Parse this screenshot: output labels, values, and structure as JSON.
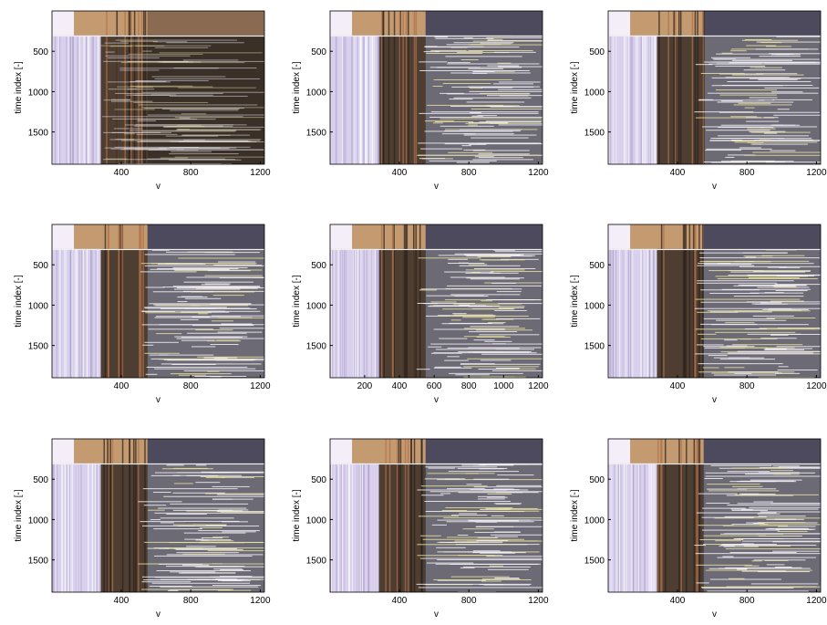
{
  "chart_data": [
    {
      "type": "image",
      "xlabel": "v",
      "ylabel": "time index [-]",
      "xlim": [
        1,
        1224
      ],
      "ylim": [
        0,
        1900
      ],
      "yreverse": true,
      "xticks": [
        400,
        800,
        1200
      ],
      "yticks": [
        500,
        1000,
        1500
      ]
    },
    {
      "type": "image",
      "xlabel": "v",
      "ylabel": "time index [-]",
      "xlim": [
        1,
        1224
      ],
      "ylim": [
        0,
        1900
      ],
      "yreverse": true,
      "xticks": [
        400,
        800,
        1200
      ],
      "yticks": [
        500,
        1000,
        1500
      ]
    },
    {
      "type": "image",
      "xlabel": "v",
      "ylabel": "time index [-]",
      "xlim": [
        1,
        1224
      ],
      "ylim": [
        0,
        1900
      ],
      "yreverse": true,
      "xticks": [
        400,
        800,
        1200
      ],
      "yticks": [
        500,
        1000,
        1500
      ]
    },
    {
      "type": "image",
      "xlabel": "v",
      "ylabel": "time index [-]",
      "xlim": [
        1,
        1224
      ],
      "ylim": [
        0,
        1900
      ],
      "yreverse": true,
      "xticks": [
        400,
        800,
        1200
      ],
      "yticks": [
        500,
        1000,
        1500
      ]
    },
    {
      "type": "image",
      "xlabel": "v",
      "ylabel": "time index [-]",
      "xlim": [
        1,
        1224
      ],
      "ylim": [
        0,
        1900
      ],
      "yreverse": true,
      "xticks": [
        200,
        400,
        600,
        800,
        1000,
        1200
      ],
      "yticks": [
        500,
        1000,
        1500
      ]
    },
    {
      "type": "image",
      "xlabel": "v",
      "ylabel": "time index [-]",
      "xlim": [
        1,
        1224
      ],
      "ylim": [
        0,
        1900
      ],
      "yreverse": true,
      "xticks": [
        400,
        800,
        1200
      ],
      "yticks": [
        500,
        1000,
        1500
      ]
    },
    {
      "type": "image",
      "xlabel": "v",
      "ylabel": "time index [-]",
      "xlim": [
        1,
        1224
      ],
      "ylim": [
        0,
        1900
      ],
      "yreverse": true,
      "xticks": [
        400,
        800,
        1200
      ],
      "yticks": [
        500,
        1000,
        1500
      ]
    },
    {
      "type": "image",
      "xlabel": "v",
      "ylabel": "time index [-]",
      "xlim": [
        1,
        1224
      ],
      "ylim": [
        0,
        1900
      ],
      "yreverse": true,
      "xticks": [
        400,
        800,
        1200
      ],
      "yticks": [
        500,
        1000,
        1500
      ]
    },
    {
      "type": "image",
      "xlabel": "v",
      "ylabel": "time index [-]",
      "xlim": [
        1,
        1224
      ],
      "ylim": [
        0,
        1900
      ],
      "yreverse": true,
      "xticks": [
        400,
        800,
        1200
      ],
      "yticks": [
        500,
        1000,
        1500
      ]
    }
  ]
}
